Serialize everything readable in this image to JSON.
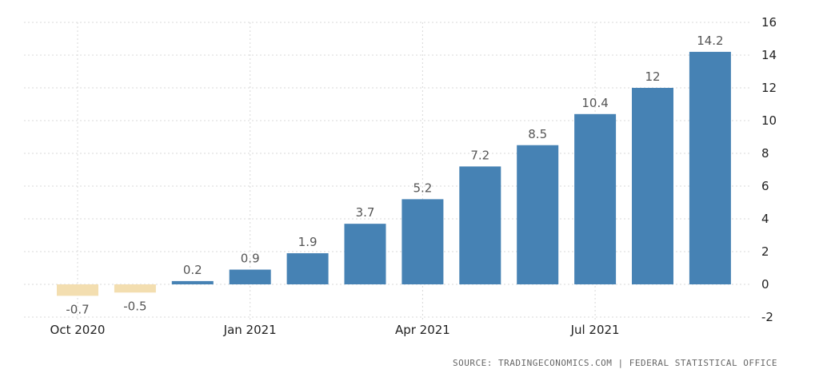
{
  "chart_data": {
    "type": "bar",
    "categories": [
      "Oct 2020",
      "Nov 2020",
      "Dec 2020",
      "Jan 2021",
      "Feb 2021",
      "Mar 2021",
      "Apr 2021",
      "May 2021",
      "Jun 2021",
      "Jul 2021",
      "Aug 2021",
      "Sep 2021"
    ],
    "values": [
      -0.7,
      -0.5,
      0.2,
      0.9,
      1.9,
      3.7,
      5.2,
      7.2,
      8.5,
      10.4,
      12,
      14.2
    ],
    "data_labels": [
      "-0.7",
      "-0.5",
      "0.2",
      "0.9",
      "1.9",
      "3.7",
      "5.2",
      "7.2",
      "8.5",
      "10.4",
      "12",
      "14.2"
    ],
    "x_tick_labels": [
      "Oct 2020",
      "Jan 2021",
      "Apr 2021",
      "Jul 2021"
    ],
    "y_ticks": [
      16,
      14,
      12,
      10,
      8,
      6,
      4,
      2,
      0,
      -2
    ],
    "ylim": [
      -2,
      16
    ],
    "y_axis_side": "right",
    "grid": true,
    "colors": {
      "positive": "#4682b4",
      "negative": "#f3deb0"
    }
  },
  "source_text": "SOURCE: TRADINGECONOMICS.COM | FEDERAL STATISTICAL OFFICE"
}
